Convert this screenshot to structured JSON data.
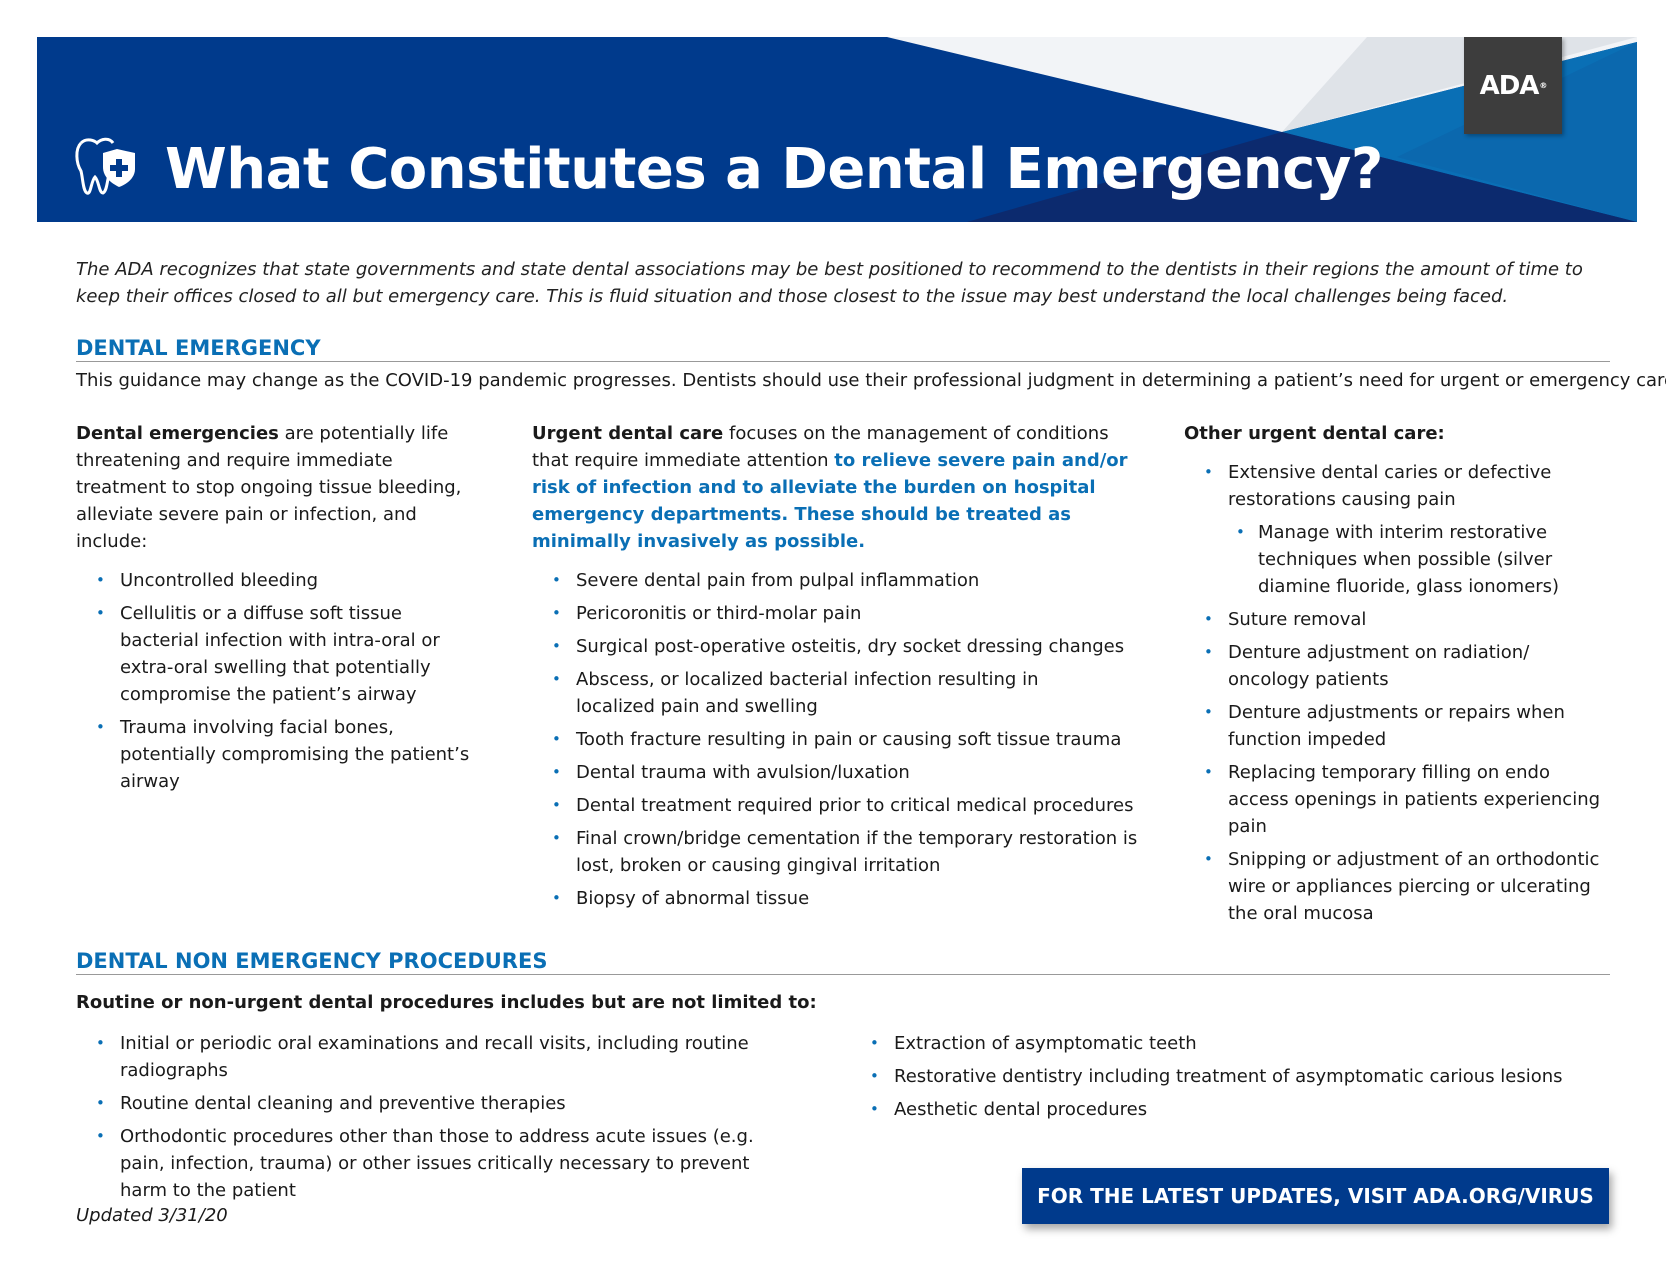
{
  "header": {
    "title": "What Constitutes a Dental Emergency?",
    "logo_text": "ADA",
    "logo_mark": "®",
    "icon": "tooth-shield-plus-icon"
  },
  "colors": {
    "brand_blue": "#003a8c",
    "accent_blue": "#0a6fb5",
    "logo_bg": "#3d3d3d"
  },
  "intro": "The ADA recognizes that state governments and state dental associations may be best positioned to recommend to the dentists in their regions the amount of time to keep their offices closed to all but emergency care. This is fluid situation and those closest to the issue may best understand the local challenges being faced.",
  "emergency": {
    "heading": "DENTAL EMERGENCY",
    "guidance": "This guidance may change as the COVID-19 pandemic progresses. Dentists should use their professional judgment in determining a patient’s need for urgent or emergency care.",
    "col1": {
      "lead_bold": "Dental emergencies",
      "lead_rest": " are potentially life threatening and require immediate treatment to stop ongoing tissue bleeding, alleviate severe pain or infection, and include:",
      "items": [
        "Uncontrolled bleeding",
        "Cellulitis or a diffuse soft tissue bacterial infection with intra-oral or extra-oral swelling that potentially compromise the patient’s airway",
        "Trauma involving facial bones, potentially compromising the patient’s airway"
      ]
    },
    "col2": {
      "lead_bold": "Urgent dental care",
      "lead_rest": " focuses on the management of conditions that require immediate attention ",
      "lead_blue": "to relieve severe pain and/or risk of infection and to alleviate the burden on hospital emergency departments. These should be treated as minimally invasively as possible.",
      "items": [
        "Severe dental pain from pulpal inflammation",
        "Pericoronitis or third-molar pain",
        "Surgical post-operative osteitis, dry socket dressing changes",
        "Abscess, or localized bacterial infection resulting in localized pain and swelling",
        "Tooth fracture resulting in pain or causing soft tissue trauma",
        "Dental trauma with avulsion/luxation",
        "Dental treatment required prior to critical medical procedures",
        "Final crown/bridge cementation if the temporary restoration is lost, broken or causing gingival irritation",
        "Biopsy of abnormal tissue"
      ]
    },
    "col3": {
      "heading": "Other urgent dental care:",
      "item0": "Extensive dental caries or defective restorations causing pain",
      "sub0": "Manage with interim restorative techniques when possible (silver diamine fluoride, glass ionomers)",
      "items": [
        "Suture removal",
        "Denture adjustment on radiation/ oncology patients",
        "Denture adjustments or repairs when function impeded",
        "Replacing temporary filling on endo access openings in patients experiencing pain",
        "Snipping or adjustment of an orthodontic wire or appliances piercing or ulcerating the oral mucosa"
      ]
    }
  },
  "non_emergency": {
    "heading": "DENTAL NON EMERGENCY PROCEDURES",
    "lead": "Routine or non-urgent dental procedures includes but are not limited to:",
    "left": [
      "Initial or periodic oral examinations and recall visits, including routine radiographs",
      "Routine dental cleaning and preventive therapies",
      "Orthodontic procedures other than those to address acute issues (e.g. pain, infection, trauma) or other issues critically necessary to prevent harm to the patient"
    ],
    "right": [
      "Extraction of asymptomatic teeth",
      "Restorative dentistry including treatment of asymptomatic carious lesions",
      "Aesthetic dental procedures"
    ]
  },
  "footer": {
    "updated": "Updated 3/31/20",
    "cta": "FOR THE LATEST UPDATES, VISIT ADA.ORG/VIRUS"
  }
}
